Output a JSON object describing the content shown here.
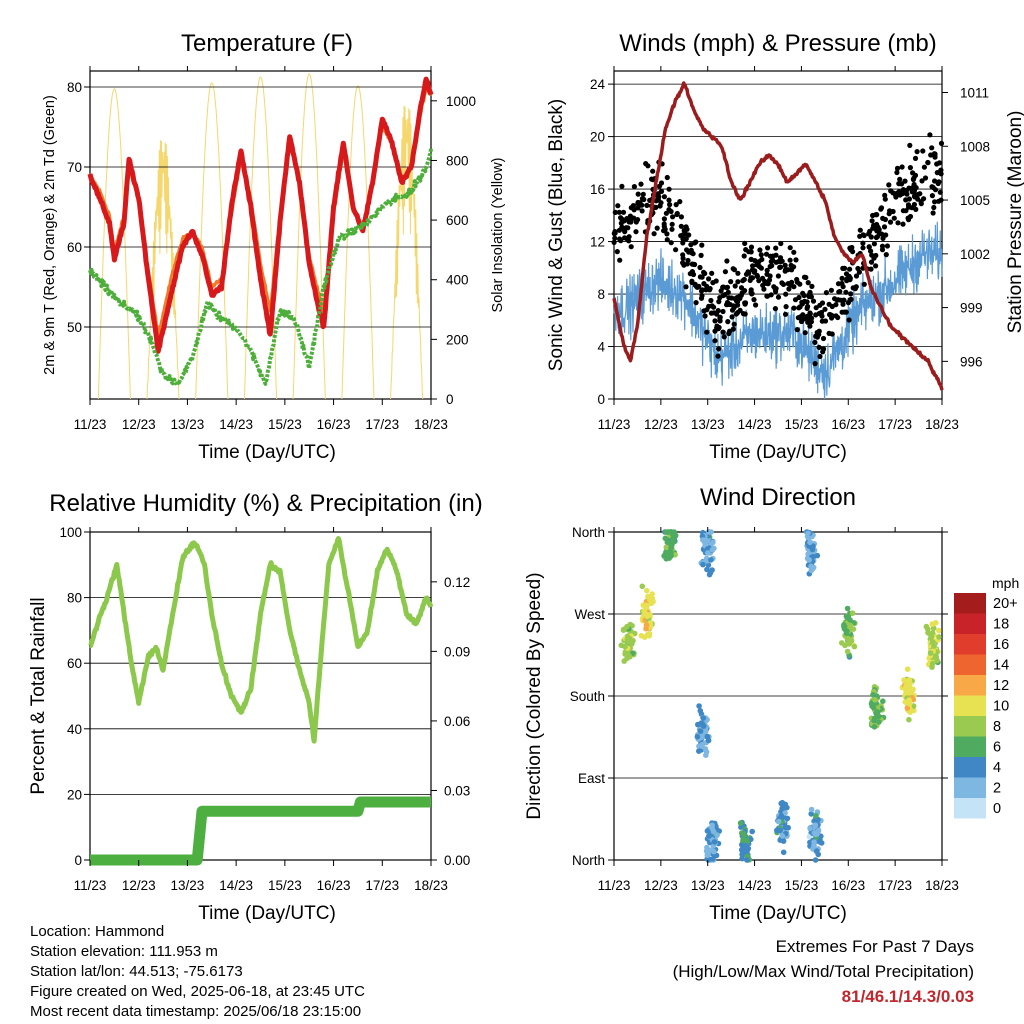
{
  "common": {
    "x_ticks": [
      "11/23",
      "12/23",
      "13/23",
      "14/23",
      "15/23",
      "16/23",
      "17/23",
      "18/23"
    ],
    "xlabel": "Time (Day/UTC)"
  },
  "info": {
    "location": "Location: Hammond",
    "elevation": "Station elevation: 111.953 m",
    "latlon": "Station lat/lon: 44.513; -75.6173",
    "created": "Figure created on Wed, 2025-06-18, at 23:45 UTC",
    "recent": "Most recent data timestamp: 2025/06/18 23:15:00"
  },
  "extremes": {
    "title": "Extremes For Past 7 Days",
    "subtitle": "(High/Low/Max Wind/Total Precipitation)",
    "values": "81/46.1/14.3/0.03"
  },
  "colors": {
    "temp2m": "#d7191c",
    "temp9m": "#f07b2a",
    "dewpoint": "#4daf3a",
    "solar": "#f5d76e",
    "wind": "#5b9bd5",
    "gust": "#000000",
    "pressure": "#9b1c1c",
    "rh": "#8cc84b",
    "precip": "#4caf3f"
  },
  "chart_data": [
    {
      "type": "line",
      "title": "Temperature (F)",
      "xlabel": "Time (Day/UTC)",
      "ylabel": "2m & 9m T (Red, Orange) & 2m Td (Green)",
      "y2label": "Solar Insolation (Yellow)",
      "xlim": [
        0,
        7
      ],
      "ylim": [
        41,
        82
      ],
      "y_ticks": [
        50,
        60,
        70,
        80
      ],
      "y2lim": [
        0,
        1100
      ],
      "y2_ticks": [
        0,
        200,
        400,
        600,
        800,
        1000
      ],
      "series": [
        {
          "name": "2m T",
          "x": [
            0,
            0.2,
            0.4,
            0.5,
            0.7,
            0.8,
            1.0,
            1.2,
            1.4,
            1.7,
            1.9,
            2.1,
            2.3,
            2.5,
            2.7,
            2.9,
            3.1,
            3.3,
            3.5,
            3.7,
            3.9,
            4.1,
            4.3,
            4.5,
            4.7,
            4.8,
            5.0,
            5.2,
            5.4,
            5.6,
            5.8,
            6.0,
            6.2,
            6.4,
            6.6,
            6.8,
            6.9,
            7.0
          ],
          "values": [
            69,
            66,
            63,
            58.5,
            63,
            71,
            66,
            56,
            47,
            55,
            60,
            62,
            59,
            54,
            55,
            65,
            72,
            65,
            56,
            49,
            63,
            74,
            68,
            58,
            52,
            50,
            65,
            73,
            65,
            62,
            68,
            76,
            73,
            68,
            70,
            78,
            81,
            79
          ]
        },
        {
          "name": "9m T",
          "x": [
            0,
            0.2,
            0.4,
            0.5,
            0.7,
            0.8,
            1.0,
            1.2,
            1.4,
            1.7,
            1.9,
            2.1,
            2.3,
            2.5,
            2.7,
            2.9,
            3.1,
            3.3,
            3.5,
            3.7,
            3.9,
            4.1,
            4.3,
            4.5,
            4.7,
            4.8,
            5.0,
            5.2,
            5.4,
            5.6,
            5.8,
            6.0,
            6.2,
            6.4,
            6.6,
            6.8,
            6.9,
            7.0
          ],
          "values": [
            69,
            67,
            64,
            59.5,
            64,
            70,
            66,
            57,
            49,
            57,
            61,
            62,
            60,
            55,
            56,
            64,
            71,
            66,
            58,
            52,
            64,
            73,
            68,
            59,
            54,
            52,
            64,
            72,
            65,
            62.5,
            68,
            75,
            73,
            68.5,
            70,
            77,
            80,
            79
          ]
        },
        {
          "name": "2m Td",
          "x": [
            0,
            0.3,
            0.6,
            0.9,
            1.2,
            1.5,
            1.8,
            2.1,
            2.4,
            2.7,
            3.0,
            3.3,
            3.6,
            3.9,
            4.2,
            4.5,
            4.8,
            5.1,
            5.4,
            5.7,
            6.0,
            6.3,
            6.6,
            6.9,
            7.0
          ],
          "values": [
            57,
            55,
            53,
            52,
            49,
            44,
            43,
            46,
            53,
            51,
            50,
            47,
            43,
            52,
            51,
            45,
            55,
            61,
            62,
            63,
            65,
            66,
            67,
            70,
            72
          ]
        }
      ],
      "solar": {
        "name": "Solar Insolation",
        "peaks_x": [
          0.5,
          1.5,
          2.5,
          3.5,
          4.5,
          5.5,
          6.5
        ],
        "peaks": [
          1040,
          900,
          1060,
          1080,
          1090,
          1050,
          1020
        ]
      }
    },
    {
      "type": "scatter",
      "title": "Winds (mph) & Pressure (mb)",
      "xlabel": "Time (Day/UTC)",
      "ylabel": "Sonic Wind & Gust (Blue, Black)",
      "y2label": "Station Pressure (Maroon)",
      "xlim": [
        0,
        7
      ],
      "ylim": [
        0,
        25
      ],
      "y_ticks": [
        0,
        4,
        8,
        12,
        16,
        20,
        24
      ],
      "y2lim": [
        993.9,
        1012.2
      ],
      "y2_ticks": [
        996,
        999,
        1002,
        1005,
        1008,
        1011
      ],
      "series": [
        {
          "name": "Pressure",
          "x": [
            0,
            0.2,
            0.35,
            0.5,
            0.7,
            0.9,
            1.1,
            1.3,
            1.5,
            1.7,
            1.9,
            2.1,
            2.3,
            2.5,
            2.7,
            2.9,
            3.1,
            3.3,
            3.5,
            3.7,
            3.9,
            4.1,
            4.3,
            4.5,
            4.7,
            4.9,
            5.1,
            5.3,
            5.5,
            5.7,
            5.9,
            6.1,
            6.3,
            6.5,
            6.7,
            6.9,
            7.0
          ],
          "values": [
            999.5,
            997,
            996,
            998,
            1003,
            1006,
            1009,
            1010.5,
            1011.5,
            1010,
            1009,
            1008.5,
            1008,
            1006,
            1005,
            1006,
            1007,
            1007.5,
            1007,
            1006,
            1006.5,
            1007,
            1006,
            1005,
            1003,
            1002,
            1001.5,
            1002,
            1000,
            999,
            998,
            997.5,
            997,
            996.5,
            996,
            995,
            994.5
          ]
        },
        {
          "name": "Gust daily center",
          "x": [
            0.3,
            0.9,
            1.5,
            2.2,
            3.0,
            3.8,
            4.5,
            5.3,
            6.0,
            6.6
          ],
          "values": [
            13,
            16,
            12,
            6,
            10,
            9,
            5,
            11,
            15,
            17
          ]
        },
        {
          "name": "Wind daily center",
          "x": [
            0.3,
            0.9,
            1.5,
            2.2,
            3.0,
            3.8,
            4.5,
            5.3,
            6.0,
            6.6
          ],
          "values": [
            7,
            9,
            8,
            3,
            5,
            5,
            2,
            7,
            9,
            11
          ]
        }
      ]
    },
    {
      "type": "line",
      "title": "Relative Humidity (%) & Precipitation (in)",
      "xlabel": "Time (Day/UTC)",
      "ylabel": "Percent & Total Rainfall",
      "xlim": [
        0,
        7
      ],
      "ylim": [
        0,
        100
      ],
      "y_ticks": [
        0,
        20,
        40,
        60,
        80,
        100
      ],
      "y2lim": [
        0,
        0.1415
      ],
      "y2_ticks": [
        "0.00",
        "0.03",
        "0.06",
        "0.09",
        "0.12"
      ],
      "series": [
        {
          "name": "RH",
          "x": [
            0,
            0.15,
            0.35,
            0.55,
            0.7,
            0.85,
            1.0,
            1.2,
            1.35,
            1.5,
            1.7,
            1.9,
            2.1,
            2.2,
            2.35,
            2.5,
            2.7,
            2.9,
            3.1,
            3.3,
            3.5,
            3.7,
            3.9,
            4.1,
            4.3,
            4.5,
            4.6,
            4.7,
            4.9,
            5.1,
            5.3,
            5.5,
            5.7,
            5.9,
            6.1,
            6.3,
            6.5,
            6.7,
            6.9,
            7.0
          ],
          "values": [
            65,
            72,
            80,
            90,
            75,
            60,
            48,
            62,
            65,
            58,
            75,
            92,
            96,
            96,
            90,
            75,
            60,
            50,
            45,
            52,
            75,
            90,
            88,
            70,
            58,
            48,
            36,
            55,
            90,
            98,
            82,
            65,
            70,
            88,
            95,
            88,
            75,
            72,
            80,
            77
          ]
        },
        {
          "name": "Precipitation",
          "x": [
            0,
            2.2,
            2.3,
            4.0,
            5.5,
            5.55,
            7.0
          ],
          "values": [
            0,
            0,
            0.021,
            0.021,
            0.021,
            0.025,
            0.025
          ]
        }
      ]
    },
    {
      "type": "scatter",
      "title": "Wind Direction",
      "xlabel": "Time (Day/UTC)",
      "ylabel": "Direction (Colored By Speed)",
      "xlim": [
        0,
        7
      ],
      "ylim": [
        0,
        360
      ],
      "y_ticks": [
        "North",
        "East",
        "South",
        "West",
        "North"
      ],
      "legend_title": "mph",
      "legend_labels": [
        "20+",
        "18",
        "16",
        "14",
        "12",
        "10",
        "8",
        "6",
        "4",
        "2",
        "0"
      ],
      "legend_colors": [
        "#a51c1c",
        "#c9232a",
        "#e03d2c",
        "#ef6530",
        "#f8a847",
        "#e6e252",
        "#9acb50",
        "#4fab5f",
        "#3f88c5",
        "#7db7e2",
        "#c5e3f7"
      ],
      "clusters": [
        {
          "x": 0.3,
          "dir": 240,
          "speed": 8
        },
        {
          "x": 0.7,
          "dir": 270,
          "speed": 10
        },
        {
          "x": 1.2,
          "dir": 350,
          "speed": 6
        },
        {
          "x": 2.0,
          "dir": 340,
          "speed": 3
        },
        {
          "x": 1.9,
          "dir": 140,
          "speed": 3
        },
        {
          "x": 2.1,
          "dir": 20,
          "speed": 3
        },
        {
          "x": 2.8,
          "dir": 20,
          "speed": 5
        },
        {
          "x": 3.6,
          "dir": 40,
          "speed": 4
        },
        {
          "x": 4.3,
          "dir": 30,
          "speed": 3
        },
        {
          "x": 4.2,
          "dir": 340,
          "speed": 3
        },
        {
          "x": 5.0,
          "dir": 250,
          "speed": 7
        },
        {
          "x": 5.6,
          "dir": 170,
          "speed": 7
        },
        {
          "x": 6.3,
          "dir": 180,
          "speed": 10
        },
        {
          "x": 6.8,
          "dir": 230,
          "speed": 9
        }
      ]
    }
  ]
}
